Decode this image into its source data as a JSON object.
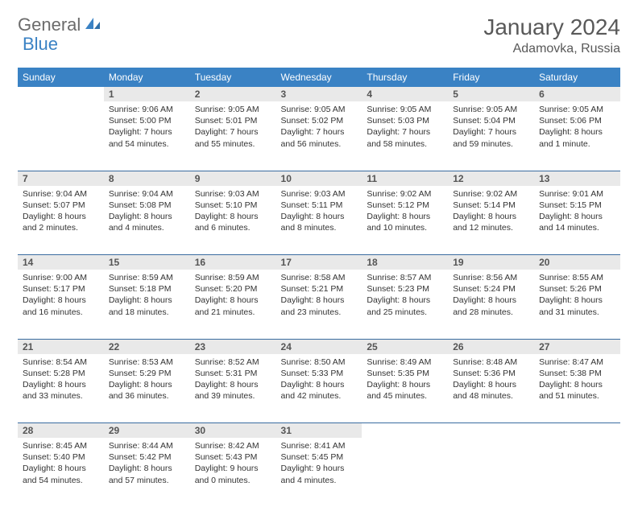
{
  "logo": {
    "part1": "General",
    "part2": "Blue"
  },
  "title": "January 2024",
  "location": "Adamovka, Russia",
  "weekdays": [
    "Sunday",
    "Monday",
    "Tuesday",
    "Wednesday",
    "Thursday",
    "Friday",
    "Saturday"
  ],
  "colors": {
    "header_bg": "#3a82c4",
    "header_text": "#ffffff",
    "daynum_bg": "#e9e9e9",
    "border": "#3a6ca0",
    "title_color": "#595959"
  },
  "weeks": [
    [
      null,
      {
        "n": "1",
        "sr": "9:06 AM",
        "ss": "5:00 PM",
        "dl": "7 hours and 54 minutes."
      },
      {
        "n": "2",
        "sr": "9:05 AM",
        "ss": "5:01 PM",
        "dl": "7 hours and 55 minutes."
      },
      {
        "n": "3",
        "sr": "9:05 AM",
        "ss": "5:02 PM",
        "dl": "7 hours and 56 minutes."
      },
      {
        "n": "4",
        "sr": "9:05 AM",
        "ss": "5:03 PM",
        "dl": "7 hours and 58 minutes."
      },
      {
        "n": "5",
        "sr": "9:05 AM",
        "ss": "5:04 PM",
        "dl": "7 hours and 59 minutes."
      },
      {
        "n": "6",
        "sr": "9:05 AM",
        "ss": "5:06 PM",
        "dl": "8 hours and 1 minute."
      }
    ],
    [
      {
        "n": "7",
        "sr": "9:04 AM",
        "ss": "5:07 PM",
        "dl": "8 hours and 2 minutes."
      },
      {
        "n": "8",
        "sr": "9:04 AM",
        "ss": "5:08 PM",
        "dl": "8 hours and 4 minutes."
      },
      {
        "n": "9",
        "sr": "9:03 AM",
        "ss": "5:10 PM",
        "dl": "8 hours and 6 minutes."
      },
      {
        "n": "10",
        "sr": "9:03 AM",
        "ss": "5:11 PM",
        "dl": "8 hours and 8 minutes."
      },
      {
        "n": "11",
        "sr": "9:02 AM",
        "ss": "5:12 PM",
        "dl": "8 hours and 10 minutes."
      },
      {
        "n": "12",
        "sr": "9:02 AM",
        "ss": "5:14 PM",
        "dl": "8 hours and 12 minutes."
      },
      {
        "n": "13",
        "sr": "9:01 AM",
        "ss": "5:15 PM",
        "dl": "8 hours and 14 minutes."
      }
    ],
    [
      {
        "n": "14",
        "sr": "9:00 AM",
        "ss": "5:17 PM",
        "dl": "8 hours and 16 minutes."
      },
      {
        "n": "15",
        "sr": "8:59 AM",
        "ss": "5:18 PM",
        "dl": "8 hours and 18 minutes."
      },
      {
        "n": "16",
        "sr": "8:59 AM",
        "ss": "5:20 PM",
        "dl": "8 hours and 21 minutes."
      },
      {
        "n": "17",
        "sr": "8:58 AM",
        "ss": "5:21 PM",
        "dl": "8 hours and 23 minutes."
      },
      {
        "n": "18",
        "sr": "8:57 AM",
        "ss": "5:23 PM",
        "dl": "8 hours and 25 minutes."
      },
      {
        "n": "19",
        "sr": "8:56 AM",
        "ss": "5:24 PM",
        "dl": "8 hours and 28 minutes."
      },
      {
        "n": "20",
        "sr": "8:55 AM",
        "ss": "5:26 PM",
        "dl": "8 hours and 31 minutes."
      }
    ],
    [
      {
        "n": "21",
        "sr": "8:54 AM",
        "ss": "5:28 PM",
        "dl": "8 hours and 33 minutes."
      },
      {
        "n": "22",
        "sr": "8:53 AM",
        "ss": "5:29 PM",
        "dl": "8 hours and 36 minutes."
      },
      {
        "n": "23",
        "sr": "8:52 AM",
        "ss": "5:31 PM",
        "dl": "8 hours and 39 minutes."
      },
      {
        "n": "24",
        "sr": "8:50 AM",
        "ss": "5:33 PM",
        "dl": "8 hours and 42 minutes."
      },
      {
        "n": "25",
        "sr": "8:49 AM",
        "ss": "5:35 PM",
        "dl": "8 hours and 45 minutes."
      },
      {
        "n": "26",
        "sr": "8:48 AM",
        "ss": "5:36 PM",
        "dl": "8 hours and 48 minutes."
      },
      {
        "n": "27",
        "sr": "8:47 AM",
        "ss": "5:38 PM",
        "dl": "8 hours and 51 minutes."
      }
    ],
    [
      {
        "n": "28",
        "sr": "8:45 AM",
        "ss": "5:40 PM",
        "dl": "8 hours and 54 minutes."
      },
      {
        "n": "29",
        "sr": "8:44 AM",
        "ss": "5:42 PM",
        "dl": "8 hours and 57 minutes."
      },
      {
        "n": "30",
        "sr": "8:42 AM",
        "ss": "5:43 PM",
        "dl": "9 hours and 0 minutes."
      },
      {
        "n": "31",
        "sr": "8:41 AM",
        "ss": "5:45 PM",
        "dl": "9 hours and 4 minutes."
      },
      null,
      null,
      null
    ]
  ],
  "labels": {
    "sunrise": "Sunrise: ",
    "sunset": "Sunset: ",
    "daylight": "Daylight: "
  }
}
